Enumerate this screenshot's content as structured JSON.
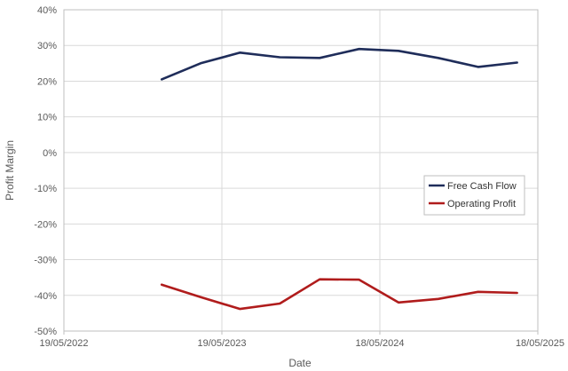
{
  "chart_data": {
    "type": "line",
    "xlabel": "Date",
    "ylabel": "Profit Margin",
    "x_ticks": [
      "19/05/2022",
      "19/05/2023",
      "18/05/2024",
      "18/05/2025"
    ],
    "y_ticks": [
      "40%",
      "30%",
      "20%",
      "10%",
      "0%",
      "-10%",
      "-20%",
      "-30%",
      "-40%",
      "-50%"
    ],
    "xlim": [
      "2022-05-19",
      "2025-05-18"
    ],
    "ylim": [
      -50,
      40
    ],
    "grid": true,
    "legend_position": "right",
    "series": [
      {
        "name": "Free Cash Flow",
        "color": "#1f2d5a",
        "points": [
          {
            "date": "2022-12-31",
            "value": 20.5
          },
          {
            "date": "2023-03-31",
            "value": 25.0
          },
          {
            "date": "2023-06-30",
            "value": 28.0
          },
          {
            "date": "2023-09-30",
            "value": 26.7
          },
          {
            "date": "2023-12-31",
            "value": 26.5
          },
          {
            "date": "2024-03-31",
            "value": 29.0
          },
          {
            "date": "2024-06-30",
            "value": 28.5
          },
          {
            "date": "2024-09-30",
            "value": 26.5
          },
          {
            "date": "2024-12-31",
            "value": 24.0
          },
          {
            "date": "2025-03-31",
            "value": 25.2
          }
        ]
      },
      {
        "name": "Operating Profit",
        "color": "#b01c1c",
        "points": [
          {
            "date": "2022-12-31",
            "value": -37.0
          },
          {
            "date": "2023-03-31",
            "value": -40.5
          },
          {
            "date": "2023-06-30",
            "value": -43.8
          },
          {
            "date": "2023-09-30",
            "value": -42.3
          },
          {
            "date": "2023-12-31",
            "value": -35.5
          },
          {
            "date": "2024-03-31",
            "value": -35.6
          },
          {
            "date": "2024-06-30",
            "value": -42.0
          },
          {
            "date": "2024-09-30",
            "value": -41.0
          },
          {
            "date": "2024-12-31",
            "value": -39.0
          },
          {
            "date": "2025-03-31",
            "value": -39.3
          }
        ]
      }
    ]
  }
}
